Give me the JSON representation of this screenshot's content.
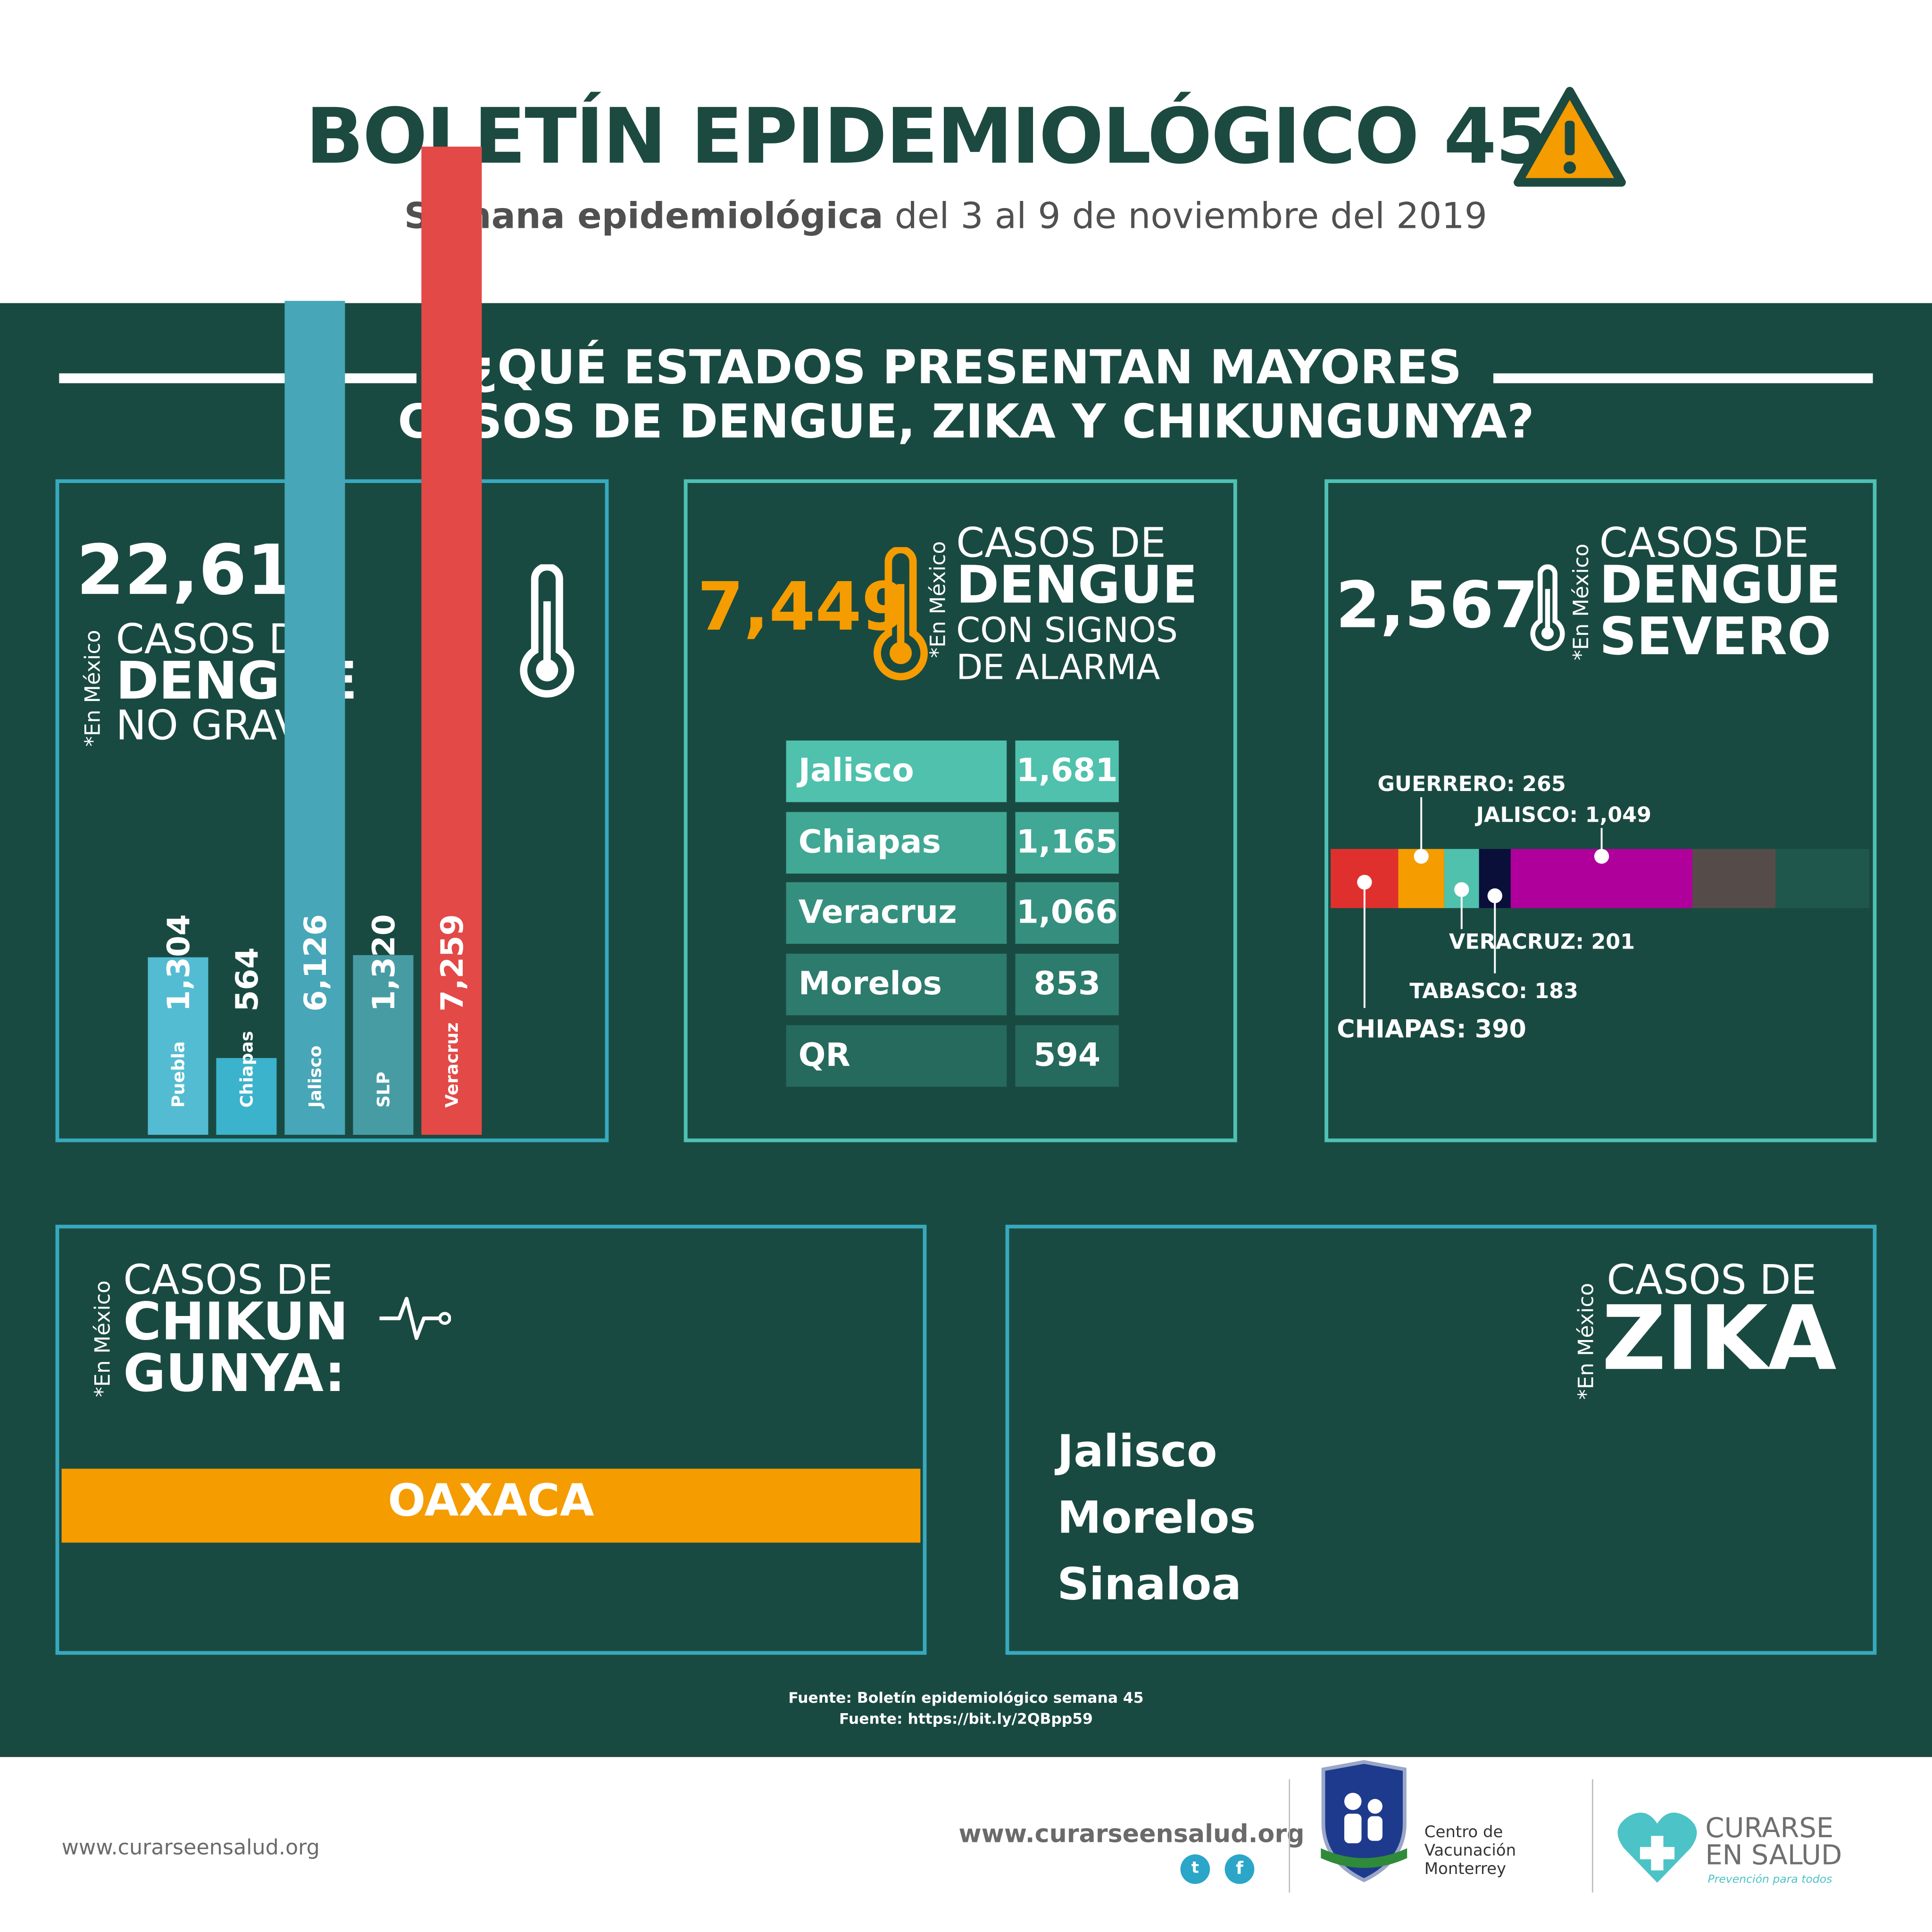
{
  "header": {
    "title": "BOLETÍN EPIDEMIOLÓGICO 45",
    "subtitle_bold": "Semana epidemiológica",
    "subtitle_rest": " del 3 al 9 de noviembre del 2019"
  },
  "section": {
    "question_line1": "¿QUÉ ESTADOS PRESENTAN MAYORES",
    "question_line2": "CASOS DE DENGUE, ZIKA Y CHIKUNGUNYA?"
  },
  "panel_no_grave": {
    "total": "22,614",
    "note": "*En México",
    "line1": "CASOS DE",
    "line2": "DENGUE",
    "line3": "NO GRAVE:"
  },
  "panel_alarma": {
    "total": "7,449",
    "note": "*En México",
    "line1": "CASOS DE",
    "line2": "DENGUE",
    "line3": "CON SIGNOS",
    "line4": "DE ALARMA"
  },
  "panel_severo": {
    "total": "2,567",
    "note": "*En México",
    "line1": "CASOS DE",
    "line2": "DENGUE",
    "line3": "SEVERO"
  },
  "panel_chikungunya": {
    "note": "*En México",
    "line1": "CASOS DE",
    "line2": "CHIKUN",
    "line3": "GUNYA:",
    "state": "OAXACA"
  },
  "panel_zika": {
    "note": "*En México",
    "line1": "CASOS DE",
    "line2": "ZIKA",
    "states": [
      "Jalisco",
      "Morelos",
      "Sinaloa"
    ]
  },
  "chart_data": [
    {
      "type": "bar",
      "categories": [
        "Puebla",
        "Chiapas",
        "Jalisco",
        "SLP",
        "Veracruz"
      ],
      "values": [
        1304,
        564,
        6126,
        1320,
        7259
      ],
      "value_labels": [
        "1,304",
        "564",
        "6,126",
        "1,320",
        "7,259"
      ],
      "colors": [
        "#3cb3cc",
        "#3cb3cc",
        "#2e9aae",
        "#2e8f98",
        "#e0302e"
      ]
    },
    {
      "type": "table",
      "rows": [
        {
          "state": "Jalisco",
          "value": "1,681",
          "color": "#4fc1ad"
        },
        {
          "state": "Chiapas",
          "value": "1,165",
          "color": "#40a894"
        },
        {
          "state": "Veracruz",
          "value": "1,066",
          "color": "#358f7f"
        },
        {
          "state": "Morelos",
          "value": "853",
          "color": "#2c7b6c"
        },
        {
          "state": "QR",
          "value": "594",
          "color": "#26695d"
        }
      ]
    },
    {
      "type": "bar",
      "orientation": "horizontal-stacked",
      "total": 2567,
      "segments": [
        {
          "name": "CHIAPAS",
          "value": 390,
          "label": "CHIAPAS: 390",
          "color": "#e0302e"
        },
        {
          "name": "GUERRERO",
          "value": 265,
          "label": "GUERRERO: 265",
          "color": "#f59c00"
        },
        {
          "name": "VERACRUZ",
          "value": 201,
          "label": "VERACRUZ: 201",
          "color": "#4fc1ad"
        },
        {
          "name": "TABASCO",
          "value": 183,
          "label": "TABASCO: 183",
          "color": "#0a0f3a"
        },
        {
          "name": "JALISCO",
          "value": 1049,
          "label": "JALISCO: 1,049",
          "color": "#b0009b"
        },
        {
          "name": "",
          "value": 479,
          "label": "",
          "color": "#554c49"
        }
      ]
    }
  ],
  "footer": {
    "source1": "Fuente: Boletín epidemiológico semana  45",
    "source2": "Fuente: https://bit.ly/2QBpp59",
    "url_left": "www.curarseensalud.org",
    "url_right": "www.curarseensalud.org",
    "cvm_line1": "Centro de",
    "cvm_line2": "Vacunación",
    "cvm_line3": "Monterrey",
    "brand_line1": "CURARSE",
    "brand_line2": "EN SALUD",
    "brand_tagline": "Prevención para todos",
    "social": [
      "twitter-icon",
      "facebook-icon"
    ]
  },
  "colors": {
    "dark_green": "#194a41",
    "title_green": "#1c4a40",
    "teal_border": "#4fc0b4",
    "orange": "#f59c00",
    "red": "#e0302e",
    "blue": "#3cb3cc"
  }
}
